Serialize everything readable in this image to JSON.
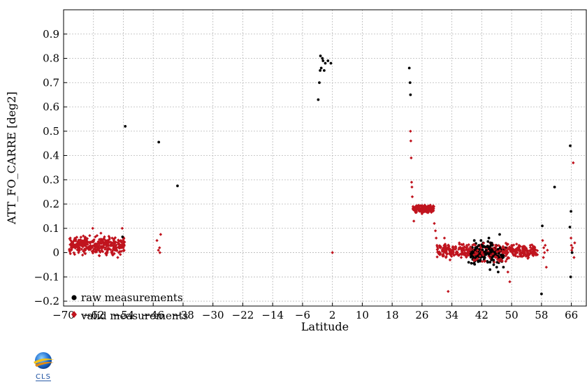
{
  "chart_data": {
    "type": "scatter",
    "title": "",
    "xlabel": "Latitude",
    "ylabel": "ATT_FO_CARRE [deg2]",
    "xlim": [
      -70,
      70
    ],
    "ylim": [
      -0.22,
      1.0
    ],
    "x_ticks": [
      -70,
      -62,
      -54,
      -46,
      -38,
      -30,
      -22,
      -14,
      -6,
      2,
      10,
      18,
      26,
      34,
      42,
      50,
      58,
      66
    ],
    "y_ticks": [
      -0.2,
      -0.1,
      0,
      0.1,
      0.2,
      0.3,
      0.4,
      0.5,
      0.6,
      0.7,
      0.8,
      0.9
    ],
    "grid": true,
    "legend_position": "bottom-left",
    "series": [
      {
        "name": "raw measurements",
        "color": "#000000",
        "marker": "circle",
        "points": [
          [
            -53.5,
            0.52
          ],
          [
            -44.5,
            0.455
          ],
          [
            -39.5,
            0.275
          ],
          [
            -54.2,
            0.065
          ],
          [
            -1.8,
            0.63
          ],
          [
            -1.5,
            0.7
          ],
          [
            -1.2,
            0.81
          ],
          [
            -1.0,
            0.76
          ],
          [
            -0.7,
            0.8
          ],
          [
            -0.5,
            0.79
          ],
          [
            -0.2,
            0.75
          ],
          [
            0.1,
            0.78
          ],
          [
            -1.3,
            0.75
          ],
          [
            0.8,
            0.79
          ],
          [
            1.6,
            0.78
          ],
          [
            22.6,
            0.76
          ],
          [
            22.8,
            0.7
          ],
          [
            22.9,
            0.65
          ],
          [
            38.5,
            -0.04
          ],
          [
            39.2,
            0.01
          ],
          [
            39.8,
            -0.02
          ],
          [
            40.3,
            0.02
          ],
          [
            40.8,
            -0.01
          ],
          [
            41.2,
            0.03
          ],
          [
            41.6,
            -0.03
          ],
          [
            42.0,
            0.0
          ],
          [
            42.4,
            0.04
          ],
          [
            42.8,
            -0.02
          ],
          [
            43.2,
            0.01
          ],
          [
            43.6,
            -0.04
          ],
          [
            44.0,
            0.02
          ],
          [
            44.4,
            -0.01
          ],
          [
            44.8,
            0.03
          ],
          [
            45.2,
            -0.05
          ],
          [
            45.6,
            0.0
          ],
          [
            46.0,
            -0.06
          ],
          [
            46.4,
            -0.08
          ],
          [
            46.8,
            0.075
          ],
          [
            47.2,
            -0.03
          ],
          [
            47.8,
            -0.06
          ],
          [
            48.3,
            0.02
          ],
          [
            44.2,
            -0.07
          ],
          [
            41.8,
            0.05
          ],
          [
            43.9,
            0.06
          ],
          [
            45.0,
            0.01
          ],
          [
            40.0,
            0.05
          ],
          [
            58.2,
            0.11
          ],
          [
            58.0,
            -0.17
          ],
          [
            61.5,
            0.27
          ],
          [
            65.7,
            0.44
          ],
          [
            65.9,
            0.17
          ],
          [
            65.6,
            0.105
          ],
          [
            65.8,
            -0.1
          ],
          [
            66.2,
            0.0
          ]
        ]
      },
      {
        "name": "valid measurements",
        "color": "#c0141e",
        "marker": "diamond",
        "points": [
          [
            -68.2,
            0.06
          ],
          [
            -67.8,
            0.04
          ],
          [
            -67.2,
            0.05
          ],
          [
            -66.8,
            0.03
          ],
          [
            -66.2,
            0.045
          ],
          [
            -65.8,
            0.02
          ],
          [
            -65.2,
            0.05
          ],
          [
            -64.8,
            0.035
          ],
          [
            -64.2,
            0.01
          ],
          [
            -63.8,
            0.04
          ],
          [
            -63.2,
            0.025
          ],
          [
            -62.8,
            0.03
          ],
          [
            -62.2,
            0.1
          ],
          [
            -61.8,
            0.015
          ],
          [
            -61.2,
            0.03
          ],
          [
            -60.8,
            0.02
          ],
          [
            -60.2,
            0.04
          ],
          [
            -59.8,
            0.01
          ],
          [
            -59.2,
            0.03
          ],
          [
            -58.8,
            0.02
          ],
          [
            -58.2,
            0.05
          ],
          [
            -57.8,
            0.015
          ],
          [
            -57.2,
            0.03
          ],
          [
            -56.8,
            0.01
          ],
          [
            -56.2,
            0.025
          ],
          [
            -55.8,
            0.02
          ],
          [
            -55.2,
            0.0
          ],
          [
            -54.8,
            0.03
          ],
          [
            -54.3,
            0.1
          ],
          [
            -54.0,
            0.02
          ],
          [
            -53.8,
            0.01
          ],
          [
            -66.0,
            0.0
          ],
          [
            -63.0,
            0.07
          ],
          [
            -60.0,
            0.08
          ],
          [
            -57.0,
            0.06
          ],
          [
            -55.5,
            -0.02
          ],
          [
            -58.5,
            -0.01
          ],
          [
            -61.5,
            0.065
          ],
          [
            -45.0,
            0.05
          ],
          [
            -44.6,
            0.01
          ],
          [
            -44.3,
            0.02
          ],
          [
            -44.0,
            0.075
          ],
          [
            -44.2,
            0.0
          ],
          [
            2.0,
            0.0
          ],
          [
            22.9,
            0.5
          ],
          [
            23.0,
            0.46
          ],
          [
            23.1,
            0.39
          ],
          [
            23.2,
            0.29
          ],
          [
            23.3,
            0.27
          ],
          [
            23.4,
            0.23
          ],
          [
            23.6,
            0.19
          ],
          [
            24.0,
            0.18
          ],
          [
            24.5,
            0.17
          ],
          [
            25.0,
            0.19
          ],
          [
            25.5,
            0.18
          ],
          [
            26.0,
            0.16
          ],
          [
            26.5,
            0.19
          ],
          [
            27.0,
            0.17
          ],
          [
            27.5,
            0.18
          ],
          [
            28.0,
            0.19
          ],
          [
            28.5,
            0.17
          ],
          [
            29.0,
            0.18
          ],
          [
            23.8,
            0.13
          ],
          [
            29.3,
            0.12
          ],
          [
            29.6,
            0.09
          ],
          [
            29.8,
            0.06
          ],
          [
            30.0,
            0.03
          ],
          [
            30.5,
            0.0
          ],
          [
            31.0,
            0.02
          ],
          [
            31.5,
            -0.01
          ],
          [
            32.0,
            0.06
          ],
          [
            32.5,
            0.0
          ],
          [
            33.0,
            0.03
          ],
          [
            33.5,
            -0.03
          ],
          [
            34.0,
            0.01
          ],
          [
            34.5,
            -0.01
          ],
          [
            35.0,
            0.02
          ],
          [
            35.5,
            0.0
          ],
          [
            36.0,
            0.04
          ],
          [
            36.5,
            -0.02
          ],
          [
            37.0,
            0.01
          ],
          [
            37.5,
            0.0
          ],
          [
            38.0,
            0.03
          ],
          [
            38.5,
            -0.01
          ],
          [
            39.0,
            0.02
          ],
          [
            48.5,
            0.02
          ],
          [
            49.0,
            0.0
          ],
          [
            49.5,
            -0.12
          ],
          [
            50.0,
            0.03
          ],
          [
            50.5,
            -0.01
          ],
          [
            51.0,
            0.01
          ],
          [
            51.5,
            0.0
          ],
          [
            52.0,
            0.03
          ],
          [
            52.5,
            -0.01
          ],
          [
            53.0,
            0.02
          ],
          [
            53.5,
            0.0
          ],
          [
            54.0,
            0.01
          ],
          [
            54.5,
            -0.02
          ],
          [
            55.0,
            0.03
          ],
          [
            55.5,
            0.0
          ],
          [
            56.0,
            0.01
          ],
          [
            56.5,
            -0.01
          ],
          [
            33.0,
            -0.16
          ],
          [
            49.0,
            -0.08
          ],
          [
            58.3,
            0.05
          ],
          [
            58.5,
            -0.02
          ],
          [
            58.8,
            0.0
          ],
          [
            59.0,
            0.03
          ],
          [
            59.3,
            -0.06
          ],
          [
            59.6,
            0.01
          ],
          [
            58.6,
            0.02
          ],
          [
            65.9,
            0.06
          ],
          [
            66.0,
            0.03
          ],
          [
            66.1,
            0.01
          ],
          [
            66.3,
            0.02
          ],
          [
            66.5,
            0.37
          ],
          [
            66.7,
            -0.02
          ],
          [
            66.9,
            0.04
          ]
        ]
      }
    ],
    "clusters": [
      {
        "series": "valid measurements",
        "x_range": [
          -68.5,
          -53.5
        ],
        "y_center": 0.03,
        "y_spread": 0.05,
        "count": 320
      },
      {
        "series": "valid measurements",
        "x_range": [
          23.5,
          29.2
        ],
        "y_center": 0.18,
        "y_spread": 0.02,
        "count": 160
      },
      {
        "series": "valid measurements",
        "x_range": [
          30.0,
          57.0
        ],
        "y_center": 0.005,
        "y_spread": 0.04,
        "count": 420
      },
      {
        "series": "raw measurements",
        "x_range": [
          39.0,
          48.0
        ],
        "y_center": -0.005,
        "y_spread": 0.06,
        "count": 140
      }
    ]
  },
  "logo": {
    "text": "CLS"
  }
}
